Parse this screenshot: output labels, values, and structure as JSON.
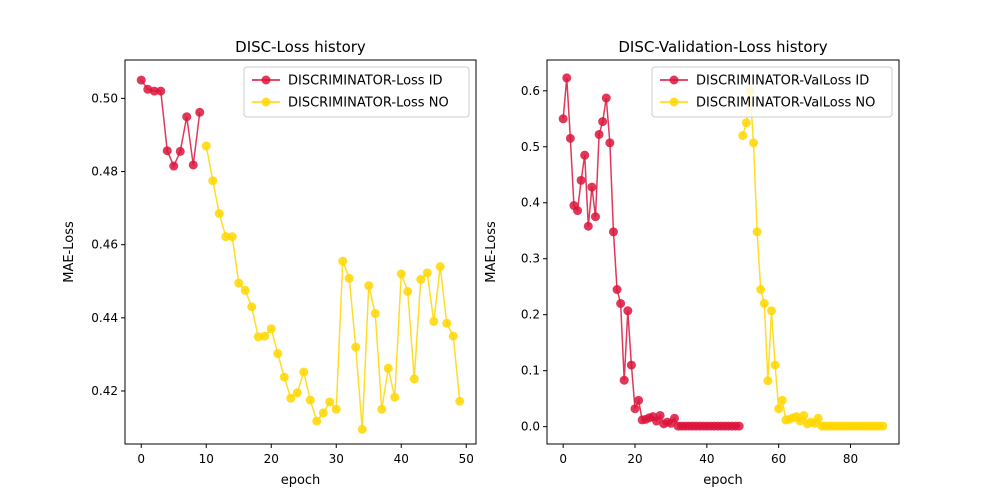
{
  "chart_data": [
    {
      "type": "line",
      "title": "DISC-Loss history",
      "xlabel": "epoch",
      "ylabel": "MAE-Loss",
      "xlim": [
        -2.5,
        51.5
      ],
      "ylim": [
        0.4055,
        0.5105
      ],
      "xticks": [
        0,
        10,
        20,
        30,
        40,
        50
      ],
      "yticks": [
        0.42,
        0.44,
        0.46,
        0.48,
        0.5
      ],
      "ytick_labels": [
        "0.42",
        "0.44",
        "0.46",
        "0.48",
        "0.50"
      ],
      "grid": false,
      "legend_position": "upper-right",
      "series": [
        {
          "name": "DISCRIMINATOR-Loss ID",
          "color": "#dc143c",
          "x": [
            0,
            1,
            2,
            3,
            4,
            5,
            6,
            7,
            8,
            9
          ],
          "y": [
            0.505,
            0.5025,
            0.502,
            0.502,
            0.4857,
            0.4815,
            0.4855,
            0.495,
            0.4818,
            0.4962
          ]
        },
        {
          "name": "DISCRIMINATOR-Loss NO",
          "color": "#ffd700",
          "x": [
            10,
            11,
            12,
            13,
            14,
            15,
            16,
            17,
            18,
            19,
            20,
            21,
            22,
            23,
            24,
            25,
            26,
            27,
            28,
            29,
            30,
            31,
            32,
            33,
            34,
            35,
            36,
            37,
            38,
            39,
            40,
            41,
            42,
            43,
            44,
            45,
            46,
            47,
            48,
            49
          ],
          "y": [
            0.487,
            0.4775,
            0.4685,
            0.4622,
            0.4622,
            0.4495,
            0.4475,
            0.443,
            0.4348,
            0.435,
            0.437,
            0.4302,
            0.4238,
            0.418,
            0.4195,
            0.4252,
            0.4175,
            0.4118,
            0.414,
            0.417,
            0.415,
            0.4555,
            0.4508,
            0.432,
            0.4095,
            0.4488,
            0.4412,
            0.415,
            0.4262,
            0.4183,
            0.452,
            0.4472,
            0.4233,
            0.4505,
            0.4523,
            0.439,
            0.454,
            0.4385,
            0.435,
            0.4172
          ]
        }
      ]
    },
    {
      "type": "line",
      "title": "DISC-Validation-Loss history",
      "xlabel": "epoch",
      "ylabel": "MAE-Loss",
      "xlim": [
        -4.5,
        93.5
      ],
      "ylim": [
        -0.031,
        0.655
      ],
      "xticks": [
        0,
        20,
        40,
        60,
        80
      ],
      "yticks": [
        0.0,
        0.1,
        0.2,
        0.3,
        0.4,
        0.5,
        0.6
      ],
      "ytick_labels": [
        "0.0",
        "0.1",
        "0.2",
        "0.3",
        "0.4",
        "0.5",
        "0.6"
      ],
      "grid": false,
      "legend_position": "upper-right",
      "series": [
        {
          "name": "DISCRIMINATOR-ValLoss ID",
          "color": "#dc143c",
          "x": [
            0,
            1,
            2,
            3,
            4,
            5,
            6,
            7,
            8,
            9,
            10,
            11,
            12,
            13,
            14,
            15,
            16,
            17,
            18,
            19,
            20,
            21,
            22,
            23,
            24,
            25,
            26,
            27,
            28,
            29,
            30,
            31,
            32,
            33,
            34,
            35,
            36,
            37,
            38,
            39,
            40,
            41,
            42,
            43,
            44,
            45,
            46,
            47,
            48,
            49
          ],
          "y": [
            0.55,
            0.623,
            0.515,
            0.395,
            0.386,
            0.44,
            0.485,
            0.358,
            0.428,
            0.375,
            0.522,
            0.545,
            0.587,
            0.507,
            0.348,
            0.245,
            0.22,
            0.083,
            0.207,
            0.11,
            0.032,
            0.047,
            0.012,
            0.013,
            0.016,
            0.018,
            0.01,
            0.02,
            0.005,
            0.008,
            0.006,
            0.015,
            0.001,
            0.001,
            0.001,
            0.001,
            0.001,
            0.001,
            0.001,
            0.001,
            0.001,
            0.001,
            0.001,
            0.001,
            0.001,
            0.001,
            0.001,
            0.001,
            0.001,
            0.001
          ]
        },
        {
          "name": "DISCRIMINATOR-ValLoss NO",
          "color": "#ffd700",
          "x": [
            50,
            51,
            52,
            53,
            54,
            55,
            56,
            57,
            58,
            59,
            60,
            61,
            62,
            63,
            64,
            65,
            66,
            67,
            68,
            69,
            70,
            71,
            72,
            73,
            74,
            75,
            76,
            77,
            78,
            79,
            80,
            81,
            82,
            83,
            84,
            85,
            86,
            87,
            88,
            89
          ],
          "y": [
            0.52,
            0.543,
            0.6,
            0.507,
            0.348,
            0.245,
            0.22,
            0.082,
            0.207,
            0.11,
            0.032,
            0.047,
            0.012,
            0.013,
            0.016,
            0.018,
            0.01,
            0.02,
            0.005,
            0.008,
            0.006,
            0.015,
            0.001,
            0.001,
            0.001,
            0.001,
            0.001,
            0.001,
            0.001,
            0.001,
            0.001,
            0.001,
            0.001,
            0.001,
            0.001,
            0.001,
            0.001,
            0.001,
            0.001,
            0.001
          ]
        }
      ]
    }
  ]
}
